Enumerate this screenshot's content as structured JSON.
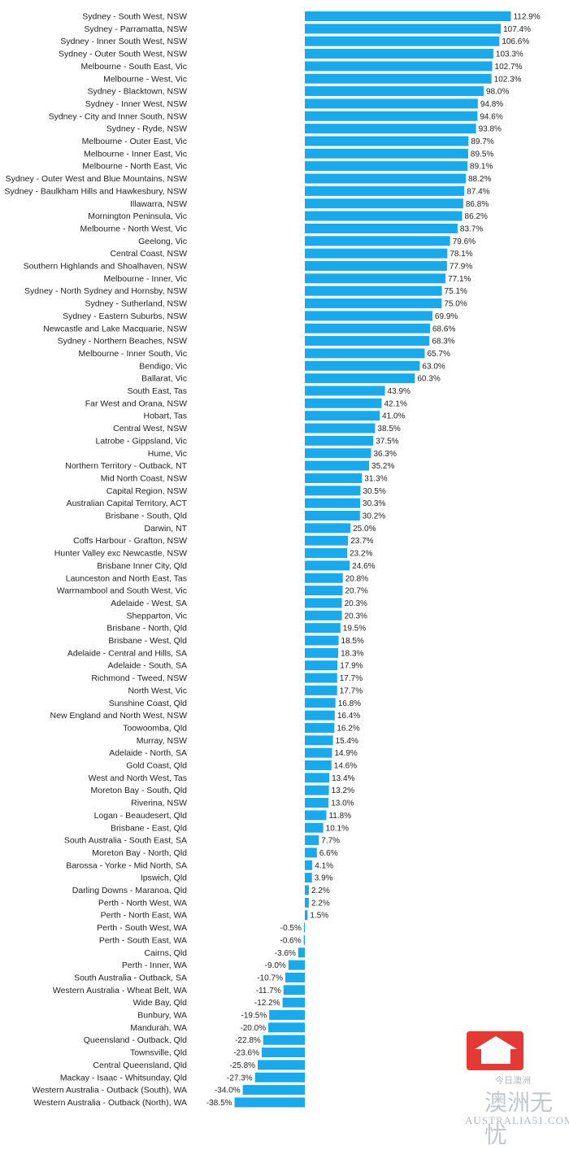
{
  "chart_data": {
    "type": "bar",
    "orientation": "horizontal",
    "categories": [
      "Sydney - South West, NSW",
      "Sydney - Parramatta, NSW",
      "Sydney - Inner South West, NSW",
      "Sydney - Outer South West, NSW",
      "Melbourne - South East, Vic",
      "Melbourne - West, Vic",
      "Sydney - Blacktown, NSW",
      "Sydney - Inner West, NSW",
      "Sydney - City and Inner South, NSW",
      "Sydney - Ryde, NSW",
      "Melbourne - Outer East, Vic",
      "Melbourne - Inner East, Vic",
      "Melbourne - North East, Vic",
      "Sydney - Outer West and Blue Mountains, NSW",
      "Sydney - Baulkham Hills and Hawkesbury, NSW",
      "Illawarra, NSW",
      "Mornington Peninsula, Vic",
      "Melbourne - North West, Vic",
      "Geelong, Vic",
      "Central Coast, NSW",
      "Southern Highlands and Shoalhaven, NSW",
      "Melbourne - Inner, Vic",
      "Sydney - North Sydney and Hornsby, NSW",
      "Sydney - Sutherland, NSW",
      "Sydney - Eastern Suburbs, NSW",
      "Newcastle and Lake Macquarie, NSW",
      "Sydney - Northern Beaches, NSW",
      "Melbourne - Inner South, Vic",
      "Bendigo, Vic",
      "Ballarat, Vic",
      "South East, Tas",
      "Far West and Orana, NSW",
      "Hobart, Tas",
      "Central West, NSW",
      "Latrobe - Gippsland, Vic",
      "Hume, Vic",
      "Northern Territory - Outback, NT",
      "Mid North Coast, NSW",
      "Capital Region, NSW",
      "Australian Capital Territory, ACT",
      "Brisbane - South, Qld",
      "Darwin, NT",
      "Coffs Harbour - Grafton, NSW",
      "Hunter Valley exc Newcastle, NSW",
      "Brisbane Inner City, Qld",
      "Launceston and North East, Tas",
      "Warrnambool and South West, Vic",
      "Adelaide - West, SA",
      "Shepparton, Vic",
      "Brisbane - North, Qld",
      "Brisbane - West, Qld",
      "Adelaide - Central and Hills, SA",
      "Adelaide - South, SA",
      "Richmond - Tweed, NSW",
      "North West, Vic",
      "Sunshine Coast, Qld",
      "New England and North West, NSW",
      "Toowoomba, Qld",
      "Murray, NSW",
      "Adelaide - North, SA",
      "Gold Coast, Qld",
      "West and North West, Tas",
      "Moreton Bay - South, Qld",
      "Riverina, NSW",
      "Logan - Beaudesert, Qld",
      "Brisbane - East, Qld",
      "South Australia - South East, SA",
      "Moreton Bay - North, Qld",
      "Barossa - Yorke - Mid North, SA",
      "Ipswich, Qld",
      "Darling Downs - Maranoa, Qld",
      "Perth - North West, WA",
      "Perth - North East, WA",
      "Perth - South West, WA",
      "Perth - South East, WA",
      "Cairns, Qld",
      "Perth - Inner, WA",
      "South Australia - Outback, SA",
      "Western Australia - Wheat Belt, WA",
      "Wide Bay, Qld",
      "Bunbury, WA",
      "Mandurah, WA",
      "Queensland - Outback, Qld",
      "Townsville, Qld",
      "Central Queensland, Qld",
      "Mackay - Isaac - Whitsunday, Qld",
      "Western Australia - Outback (South), WA",
      "Western Australia - Outback (North), WA"
    ],
    "values": [
      112.9,
      107.4,
      106.6,
      103.3,
      102.7,
      102.3,
      98.0,
      94.8,
      94.6,
      93.8,
      89.7,
      89.5,
      89.1,
      88.2,
      87.4,
      86.8,
      86.2,
      83.7,
      79.6,
      78.1,
      77.9,
      77.1,
      75.1,
      75.0,
      69.9,
      68.6,
      68.3,
      65.7,
      63.0,
      60.3,
      43.9,
      42.1,
      41.0,
      38.5,
      37.5,
      36.3,
      35.2,
      31.3,
      30.5,
      30.3,
      30.2,
      25.0,
      23.7,
      23.2,
      24.6,
      20.8,
      20.7,
      20.3,
      20.3,
      19.5,
      18.5,
      18.3,
      17.9,
      17.7,
      17.7,
      16.8,
      16.4,
      16.2,
      15.4,
      14.9,
      14.6,
      13.4,
      13.2,
      13.0,
      11.8,
      10.1,
      7.7,
      6.6,
      4.1,
      3.9,
      2.2,
      2.2,
      1.5,
      -0.5,
      -0.6,
      -3.6,
      -9.0,
      -10.7,
      -11.7,
      -12.2,
      -19.5,
      -20.0,
      -22.8,
      -23.6,
      -25.8,
      -27.3,
      -34.0,
      -38.5
    ],
    "value_labels": [
      "112.9%",
      "107.4%",
      "106.6%",
      "103.3%",
      "102.7%",
      "102.3%",
      "98.0%",
      "94.8%",
      "94.6%",
      "93.8%",
      "89.7%",
      "89.5%",
      "89.1%",
      "88.2%",
      "87.4%",
      "86.8%",
      "86.2%",
      "83.7%",
      "79.6%",
      "78.1%",
      "77.9%",
      "77.1%",
      "75.1%",
      "75.0%",
      "69.9%",
      "68.6%",
      "68.3%",
      "65.7%",
      "63.0%",
      "60.3%",
      "43.9%",
      "42.1%",
      "41.0%",
      "38.5%",
      "37.5%",
      "36.3%",
      "35.2%",
      "31.3%",
      "30.5%",
      "30.3%",
      "30.2%",
      "25.0%",
      "23.7%",
      "23.2%",
      "24.6%",
      "20.8%",
      "20.7%",
      "20.3%",
      "20.3%",
      "19.5%",
      "18.5%",
      "18.3%",
      "17.9%",
      "17.7%",
      "17.7%",
      "16.8%",
      "16.4%",
      "16.2%",
      "15.4%",
      "14.9%",
      "14.6%",
      "13.4%",
      "13.2%",
      "13.0%",
      "11.8%",
      "10.1%",
      "7.7%",
      "6.6%",
      "4.1%",
      "3.9%",
      "2.2%",
      "2.2%",
      "1.5%",
      "-0.5%",
      "-0.6%",
      "-3.6%",
      "-9.0%",
      "-10.7%",
      "-11.7%",
      "-12.2%",
      "-19.5%",
      "-20.0%",
      "-22.8%",
      "-23.6%",
      "-25.8%",
      "-27.3%",
      "-34.0%",
      "-38.5%"
    ],
    "xlim": [
      -40,
      120
    ],
    "bar_color": "#1aa9ea",
    "grid": false,
    "legend": "none"
  },
  "watermark": {
    "cn_text": "今日澳洲",
    "site_text": "AUSTRALIA51.COM",
    "glyph": "澳洲无忧",
    "brand_color": "#e53935"
  }
}
